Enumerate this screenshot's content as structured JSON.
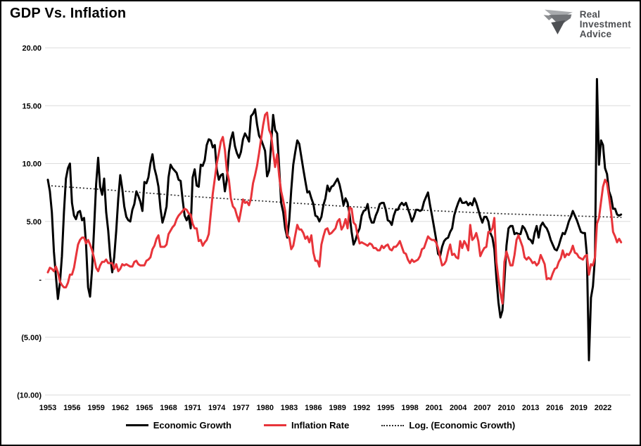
{
  "title": "GDP Vs. Inflation",
  "logo": {
    "line1": "Real",
    "line2": "Investment",
    "line3": "Advice"
  },
  "colors": {
    "economic_growth": "#000000",
    "inflation": "#e8343a",
    "trend": "#2b2b2b",
    "grid": "#dcdcdc",
    "logo_text": "#4d4f53"
  },
  "legend": {
    "items": [
      {
        "id": "economic-growth",
        "label": "Economic Growth",
        "style": "solid",
        "color": "#000000"
      },
      {
        "id": "inflation-rate",
        "label": "Inflation Rate",
        "style": "solid",
        "color": "#e8343a"
      },
      {
        "id": "log-trend",
        "label": "Log. (Economic Growth)",
        "style": "dotted",
        "color": "#2b2b2b"
      }
    ]
  },
  "chart_data": {
    "type": "line",
    "title": "GDP Vs. Inflation",
    "xlabel": "",
    "ylabel": "",
    "x_start": 1953,
    "x_step_years": 0.25,
    "xlim": [
      1953,
      2024.5
    ],
    "ylim": [
      -10,
      20
    ],
    "grid": "horizontal-only",
    "legend_position": "bottom",
    "y_ticks": [
      {
        "value": 20,
        "label": "20.00"
      },
      {
        "value": 15,
        "label": "15.00"
      },
      {
        "value": 10,
        "label": "10.00"
      },
      {
        "value": 5,
        "label": "5.00"
      },
      {
        "value": 0,
        "label": "-"
      },
      {
        "value": -5,
        "label": "(5.00)"
      },
      {
        "value": -10,
        "label": "(10.00)"
      }
    ],
    "x_ticks": [
      1953,
      1956,
      1959,
      1962,
      1965,
      1968,
      1971,
      1974,
      1977,
      1980,
      1983,
      1986,
      1989,
      1992,
      1995,
      1998,
      2001,
      2004,
      2007,
      2010,
      2013,
      2016,
      2019,
      2022
    ],
    "trend": {
      "name": "Log. (Economic Growth)",
      "color": "#2b2b2b",
      "points": [
        [
          1953,
          8.1
        ],
        [
          1960,
          7.75
        ],
        [
          1970,
          7.2
        ],
        [
          1980,
          6.75
        ],
        [
          1990,
          6.3
        ],
        [
          2000,
          5.95
        ],
        [
          2010,
          5.65
        ],
        [
          2024.3,
          5.35
        ]
      ]
    },
    "series": [
      {
        "id": "economic-growth",
        "name": "Economic Growth",
        "color": "#000000",
        "unit": "% YoY",
        "values": [
          8.6,
          7.6,
          5.8,
          2.4,
          0.3,
          -1.7,
          -0.3,
          2.0,
          5.8,
          8.7,
          9.6,
          10.0,
          6.6,
          5.5,
          5.2,
          5.8,
          5.9,
          5.1,
          5.3,
          3.0,
          -0.7,
          -1.5,
          0.9,
          4.5,
          8.2,
          10.5,
          8.0,
          7.3,
          8.7,
          5.8,
          4.2,
          2.0,
          0.6,
          1.9,
          4.2,
          7.0,
          9.0,
          7.8,
          6.3,
          5.4,
          5.1,
          5.0,
          6.0,
          6.5,
          7.6,
          7.2,
          6.7,
          5.9,
          8.4,
          8.3,
          8.8,
          10.0,
          10.8,
          9.6,
          8.9,
          8.0,
          6.1,
          4.9,
          5.5,
          6.3,
          8.8,
          9.9,
          9.6,
          9.4,
          9.2,
          8.6,
          8.5,
          6.9,
          5.5,
          5.1,
          5.5,
          4.4,
          8.8,
          9.5,
          8.1,
          8.0,
          9.9,
          9.8,
          10.3,
          11.6,
          12.1,
          12.0,
          11.4,
          11.6,
          9.5,
          8.6,
          9.0,
          9.1,
          7.6,
          8.6,
          11.0,
          12.1,
          12.7,
          11.5,
          10.9,
          10.5,
          11.0,
          12.1,
          12.6,
          12.3,
          11.9,
          14.1,
          14.3,
          14.7,
          13.4,
          12.4,
          12.1,
          11.6,
          11.1,
          8.9,
          9.4,
          11.6,
          14.2,
          12.9,
          12.6,
          9.6,
          6.6,
          5.8,
          4.4,
          3.6,
          5.1,
          7.7,
          9.9,
          11.0,
          12.0,
          11.7,
          10.6,
          9.5,
          8.5,
          7.5,
          7.6,
          7.0,
          6.5,
          5.5,
          5.4,
          5.0,
          5.4,
          6.4,
          7.0,
          8.1,
          7.6,
          8.0,
          8.1,
          8.4,
          8.7,
          8.2,
          7.4,
          6.4,
          7.0,
          6.6,
          5.6,
          4.1,
          3.0,
          3.4,
          4.0,
          4.4,
          5.5,
          5.9,
          6.0,
          6.5,
          5.4,
          4.9,
          4.9,
          5.5,
          5.9,
          6.5,
          6.6,
          6.6,
          6.0,
          5.1,
          5.0,
          4.7,
          5.5,
          6.0,
          6.0,
          6.4,
          6.6,
          6.4,
          6.6,
          6.1,
          5.6,
          5.0,
          5.4,
          6.0,
          6.0,
          5.9,
          6.0,
          6.7,
          7.1,
          7.5,
          6.4,
          5.5,
          4.5,
          3.5,
          2.2,
          2.0,
          2.8,
          3.3,
          3.5,
          3.6,
          4.1,
          4.4,
          5.5,
          6.1,
          6.6,
          7.0,
          6.6,
          6.6,
          6.7,
          6.4,
          6.6,
          6.4,
          7.0,
          6.6,
          6.0,
          5.4,
          4.9,
          5.4,
          5.4,
          5.0,
          4.0,
          3.6,
          2.6,
          0.1,
          -2.0,
          -3.3,
          -2.7,
          -0.1,
          2.9,
          4.4,
          4.6,
          4.6,
          3.9,
          4.0,
          3.9,
          3.9,
          4.6,
          4.4,
          4.0,
          3.5,
          3.4,
          3.1,
          4.0,
          4.6,
          3.6,
          4.6,
          4.9,
          4.6,
          4.4,
          4.0,
          3.4,
          3.0,
          2.6,
          2.5,
          2.9,
          3.5,
          4.0,
          3.9,
          4.4,
          5.0,
          5.4,
          5.9,
          5.5,
          5.1,
          4.6,
          4.1,
          4.0,
          4.0,
          2.1,
          -7.0,
          -1.6,
          -0.6,
          1.9,
          17.3,
          9.9,
          12.0,
          11.6,
          9.6,
          9.1,
          7.6,
          7.1,
          6.1,
          6.1,
          5.6,
          5.5,
          5.6
        ]
      },
      {
        "id": "inflation-rate",
        "name": "Inflation Rate",
        "color": "#e8343a",
        "unit": "% YoY",
        "values": [
          0.6,
          1.0,
          0.9,
          0.7,
          1.1,
          0.6,
          -0.2,
          -0.5,
          -0.7,
          -0.7,
          -0.3,
          0.4,
          0.4,
          1.0,
          2.0,
          3.0,
          3.4,
          3.6,
          3.6,
          3.1,
          3.4,
          3.0,
          2.5,
          1.8,
          1.0,
          0.7,
          1.2,
          1.5,
          1.5,
          1.7,
          1.4,
          1.4,
          1.4,
          0.9,
          1.3,
          0.7,
          0.9,
          1.3,
          1.2,
          1.3,
          1.2,
          1.1,
          1.1,
          1.5,
          1.6,
          1.3,
          1.2,
          1.2,
          1.2,
          1.6,
          1.7,
          1.9,
          2.6,
          2.9,
          3.5,
          3.8,
          2.8,
          2.8,
          2.8,
          3.0,
          3.9,
          4.2,
          4.5,
          4.7,
          5.2,
          5.5,
          5.7,
          5.9,
          6.1,
          6.0,
          5.7,
          5.6,
          4.8,
          4.4,
          4.4,
          3.3,
          3.4,
          2.9,
          3.2,
          3.4,
          3.9,
          5.7,
          7.4,
          8.7,
          10.0,
          10.9,
          11.9,
          12.3,
          11.2,
          9.4,
          8.6,
          7.0,
          6.3,
          6.1,
          5.5,
          5.0,
          5.9,
          6.9,
          6.6,
          6.7,
          6.4,
          7.0,
          8.3,
          9.0,
          9.8,
          10.9,
          12.1,
          13.3,
          14.2,
          14.4,
          12.9,
          12.5,
          11.0,
          9.7,
          10.8,
          8.9,
          7.6,
          6.8,
          5.9,
          3.8,
          3.6,
          2.6,
          2.9,
          3.8,
          4.7,
          4.3,
          4.3,
          4.0,
          3.5,
          3.7,
          3.2,
          3.8,
          2.3,
          1.6,
          1.6,
          1.1,
          3.0,
          3.7,
          4.3,
          4.4,
          3.9,
          4.0,
          4.2,
          4.4,
          5.0,
          5.2,
          4.3,
          4.6,
          5.2,
          4.4,
          6.2,
          6.1,
          4.9,
          4.7,
          3.8,
          3.1,
          3.2,
          3.1,
          3.0,
          2.9,
          3.1,
          3.0,
          2.7,
          2.7,
          2.5,
          2.5,
          2.9,
          2.7,
          2.9,
          3.0,
          2.6,
          2.5,
          2.8,
          2.8,
          3.0,
          3.3,
          2.8,
          2.3,
          2.2,
          1.7,
          1.4,
          1.7,
          1.5,
          1.6,
          1.7,
          2.0,
          2.6,
          2.7,
          3.2,
          3.7,
          3.5,
          3.4,
          3.4,
          3.2,
          2.7,
          1.9,
          1.2,
          1.3,
          1.6,
          2.4,
          3.0,
          2.1,
          2.2,
          1.9,
          1.8,
          3.3,
          2.7,
          3.3,
          3.0,
          2.5,
          4.7,
          3.4,
          3.6,
          4.0,
          3.3,
          2.0,
          2.4,
          2.7,
          2.8,
          4.1,
          4.1,
          4.4,
          5.3,
          1.5,
          0.0,
          -1.2,
          -2.1,
          1.5,
          2.4,
          1.8,
          1.2,
          1.2,
          2.1,
          3.4,
          3.8,
          3.3,
          2.8,
          1.9,
          1.7,
          1.9,
          1.7,
          1.4,
          1.5,
          1.2,
          1.4,
          2.1,
          1.7,
          1.3,
          0.0,
          0.1,
          0.0,
          0.5,
          0.9,
          1.0,
          1.5,
          1.8,
          2.5,
          1.9,
          2.2,
          2.1,
          2.4,
          2.9,
          2.3,
          2.2,
          1.9,
          1.8,
          1.7,
          2.0,
          2.1,
          0.4,
          1.3,
          1.2,
          1.9,
          4.8,
          5.3,
          6.7,
          8.0,
          8.6,
          8.3,
          7.1,
          5.8,
          4.1,
          3.7,
          3.2,
          3.5,
          3.2
        ]
      }
    ]
  }
}
